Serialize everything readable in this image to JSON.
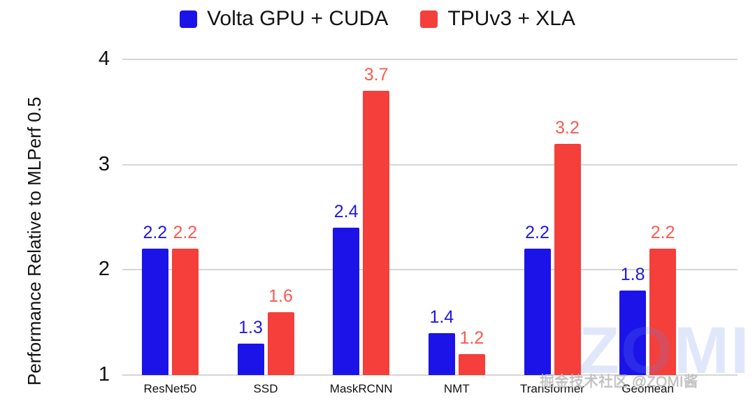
{
  "chart_data": {
    "type": "bar",
    "title": "",
    "ylabel": "Performance Relative to MLPerf 0.5",
    "xlabel": "",
    "categories": [
      "ResNet50",
      "SSD",
      "MaskRCNN",
      "NMT",
      "Transformer",
      "Geomean"
    ],
    "series": [
      {
        "name": "Volta GPU + CUDA",
        "color": "#1c13e8",
        "label_color": "#2218e6",
        "values": [
          2.2,
          1.3,
          2.4,
          1.4,
          2.2,
          1.8
        ]
      },
      {
        "name": "TPUv3 + XLA",
        "color": "#f43f3a",
        "label_color": "#fa5a52",
        "values": [
          2.2,
          1.6,
          3.7,
          1.2,
          3.2,
          2.2
        ]
      }
    ],
    "ylim": [
      1,
      4
    ],
    "yticks": [
      1,
      2,
      3,
      4
    ],
    "grid": true,
    "legend_position": "top",
    "baseline": 1
  },
  "watermark": {
    "small": "掘金技术社区 @ZOMI酱",
    "big": "ZOMI"
  }
}
